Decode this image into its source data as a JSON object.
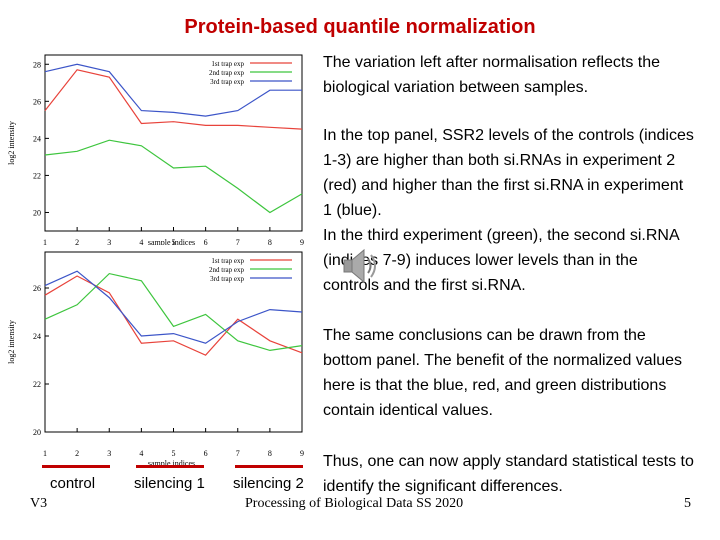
{
  "title": "Protein-based quantile normalization",
  "paragraphs": [
    "The variation left after normalisation reflects the biological variation between samples.",
    "In the top panel, SSR2 levels of the controls (indices 1-3) are higher than both si.RNAs in experiment 2 (red) and higher than the first si.RNA in experiment 1 (blue).\nIn the third experiment (green), the second si.RNA (indices 7-9) induces lower levels than in the controls and the first si.RNA.",
    "The same conclusions can be drawn from the bottom panel. The benefit of the normalized values here is that the blue, red, and green distributions contain identical values.",
    "Thus, one can now apply standard statistical tests to identify the significant differences."
  ],
  "group_labels": [
    "control",
    "silencing 1",
    "silencing 2"
  ],
  "footer": {
    "version": "V3",
    "course": "Processing of Biological Data SS 2020",
    "page": "5"
  },
  "speaker_icon": "speaker-icon",
  "colors": {
    "title": "#c00000",
    "red": "#e8433b",
    "green": "#3ec53e",
    "blue": "#3c55c8",
    "label_line": "#c00000"
  },
  "chart_data": [
    {
      "type": "line",
      "xlabel": "sample indices",
      "ylabel": "log2 intensity",
      "x": [
        1,
        2,
        3,
        4,
        5,
        6,
        7,
        8,
        9
      ],
      "ylim": [
        19,
        28.5
      ],
      "yticks": [
        20,
        22,
        24,
        26,
        28
      ],
      "series": [
        {
          "name": "1st trap exp",
          "color": "red",
          "values": [
            25.5,
            27.7,
            27.3,
            24.8,
            24.9,
            24.7,
            24.7,
            24.6,
            24.5
          ]
        },
        {
          "name": "2nd trap exp",
          "color": "green",
          "values": [
            23.1,
            23.3,
            23.9,
            23.6,
            22.4,
            22.5,
            21.3,
            20,
            21
          ]
        },
        {
          "name": "3rd trap exp",
          "color": "blue",
          "values": [
            27.6,
            28,
            27.6,
            25.5,
            25.4,
            25.2,
            25.5,
            26.6,
            26.6
          ]
        }
      ],
      "legend": "top-right",
      "grid": false
    },
    {
      "type": "line",
      "xlabel": "sample indices",
      "ylabel": "log2 intensity",
      "x": [
        1,
        2,
        3,
        4,
        5,
        6,
        7,
        8,
        9
      ],
      "ylim": [
        20,
        27.5
      ],
      "yticks": [
        20,
        22,
        24,
        26
      ],
      "series": [
        {
          "name": "1st trap exp",
          "color": "red",
          "values": [
            25.7,
            26.5,
            25.8,
            23.7,
            23.8,
            23.2,
            24.7,
            23.8,
            23.3
          ]
        },
        {
          "name": "2nd trap exp",
          "color": "green",
          "values": [
            24.7,
            25.3,
            26.6,
            26.3,
            24.4,
            24.9,
            23.8,
            23.4,
            23.6
          ]
        },
        {
          "name": "3rd trap exp",
          "color": "blue",
          "values": [
            26.1,
            26.7,
            25.6,
            24.0,
            24.1,
            23.7,
            24.6,
            25.1,
            25
          ]
        }
      ],
      "legend": "top-right",
      "grid": false
    }
  ]
}
